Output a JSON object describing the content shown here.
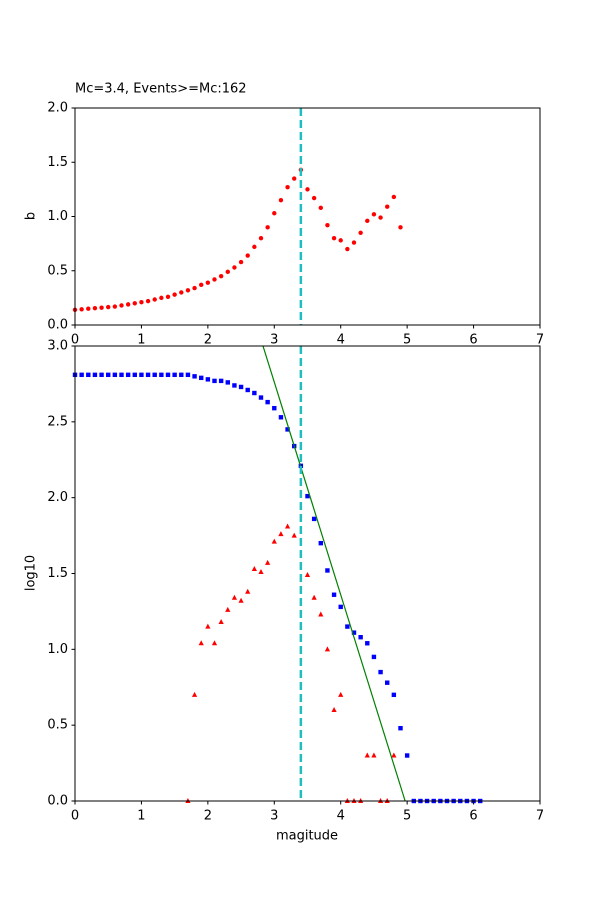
{
  "chart_data": [
    {
      "type": "scatter",
      "title": "Mc=3.4, Events>=Mc:162",
      "y_label": "b",
      "xlim": [
        0,
        7
      ],
      "ylim": [
        0,
        2
      ],
      "xticks": [
        0,
        1,
        2,
        3,
        4,
        5,
        6,
        7
      ],
      "yticks": [
        {
          "value": 0,
          "label": "0.0"
        },
        {
          "value": 0.5,
          "label": "0.5"
        },
        {
          "value": 1,
          "label": "1.0"
        },
        {
          "value": 1.5,
          "label": "1.5"
        },
        {
          "value": 2,
          "label": "2.0"
        }
      ],
      "vline": {
        "x": 3.4,
        "color": "#1fbfbf"
      },
      "series": [
        {
          "marker": "o",
          "color": "#ff0000",
          "x": [
            0.0,
            0.1,
            0.2,
            0.3,
            0.4,
            0.5,
            0.6,
            0.7,
            0.8,
            0.9,
            1.0,
            1.1,
            1.2,
            1.3,
            1.4,
            1.5,
            1.6,
            1.7,
            1.8,
            1.9,
            2.0,
            2.1,
            2.2,
            2.3,
            2.4,
            2.5,
            2.6,
            2.7,
            2.8,
            2.9,
            3.0,
            3.1,
            3.2,
            3.3,
            3.4,
            3.5,
            3.6,
            3.7,
            3.8,
            3.9,
            4.0,
            4.1,
            4.2,
            4.3,
            4.4,
            4.5,
            4.6,
            4.7,
            4.8,
            4.9
          ],
          "values": [
            0.14,
            0.145,
            0.15,
            0.155,
            0.16,
            0.165,
            0.17,
            0.18,
            0.19,
            0.2,
            0.21,
            0.22,
            0.235,
            0.25,
            0.26,
            0.28,
            0.3,
            0.32,
            0.34,
            0.37,
            0.39,
            0.42,
            0.45,
            0.49,
            0.53,
            0.58,
            0.64,
            0.72,
            0.8,
            0.9,
            1.03,
            1.15,
            1.27,
            1.35,
            1.43,
            1.25,
            1.17,
            1.08,
            0.92,
            0.8,
            0.78,
            0.7,
            0.76,
            0.85,
            0.96,
            1.02,
            0.99,
            1.09,
            1.18,
            0.9
          ]
        }
      ]
    },
    {
      "type": "scatter",
      "x_label": "magitude",
      "y_label": "log10",
      "xlim": [
        0,
        7
      ],
      "ylim": [
        0,
        3
      ],
      "xticks": [
        0,
        1,
        2,
        3,
        4,
        5,
        6,
        7
      ],
      "yticks": [
        {
          "value": 0,
          "label": "0.0"
        },
        {
          "value": 0.5,
          "label": "0.5"
        },
        {
          "value": 1,
          "label": "1.0"
        },
        {
          "value": 1.5,
          "label": "1.5"
        },
        {
          "value": 2,
          "label": "2.0"
        },
        {
          "value": 2.5,
          "label": "2.5"
        },
        {
          "value": 3,
          "label": "3.0"
        }
      ],
      "vline": {
        "x": 3.4,
        "color": "#1fbfbf"
      },
      "series": [
        {
          "marker": "s",
          "color": "#0000ff",
          "x": [
            0.0,
            0.1,
            0.2,
            0.3,
            0.4,
            0.5,
            0.6,
            0.7,
            0.8,
            0.9,
            1.0,
            1.1,
            1.2,
            1.3,
            1.4,
            1.5,
            1.6,
            1.7,
            1.8,
            1.9,
            2.0,
            2.1,
            2.2,
            2.3,
            2.4,
            2.5,
            2.6,
            2.7,
            2.8,
            2.9,
            3.0,
            3.1,
            3.2,
            3.3,
            3.4,
            3.5,
            3.6,
            3.7,
            3.8,
            3.9,
            4.0,
            4.1,
            4.2,
            4.3,
            4.4,
            4.5,
            4.6,
            4.7,
            4.8,
            4.9,
            5.0,
            5.1,
            5.2,
            5.3,
            5.4,
            5.5,
            5.6,
            5.7,
            5.8,
            5.9,
            6.0,
            6.1
          ],
          "values": [
            2.81,
            2.81,
            2.81,
            2.81,
            2.81,
            2.81,
            2.81,
            2.81,
            2.81,
            2.81,
            2.81,
            2.81,
            2.81,
            2.81,
            2.81,
            2.81,
            2.81,
            2.81,
            2.8,
            2.79,
            2.78,
            2.77,
            2.77,
            2.76,
            2.74,
            2.73,
            2.71,
            2.69,
            2.66,
            2.63,
            2.59,
            2.53,
            2.45,
            2.34,
            2.21,
            2.01,
            1.86,
            1.7,
            1.52,
            1.36,
            1.28,
            1.15,
            1.11,
            1.08,
            1.04,
            0.95,
            0.85,
            0.78,
            0.7,
            0.48,
            0.3,
            0,
            0,
            0,
            0,
            0,
            0,
            0,
            0,
            0,
            0,
            0
          ]
        },
        {
          "marker": "^",
          "color": "#ff0000",
          "x": [
            1.7,
            1.8,
            1.9,
            2.0,
            2.1,
            2.2,
            2.3,
            2.4,
            2.5,
            2.6,
            2.7,
            2.8,
            2.9,
            3.0,
            3.1,
            3.2,
            3.3,
            3.5,
            3.6,
            3.7,
            3.8,
            3.9,
            4.0,
            4.1,
            4.2,
            4.3,
            4.4,
            4.5,
            4.6,
            4.7,
            4.8
          ],
          "values": [
            0,
            0.7,
            1.04,
            1.15,
            1.04,
            1.18,
            1.26,
            1.34,
            1.32,
            1.38,
            1.53,
            1.51,
            1.57,
            1.71,
            1.76,
            1.81,
            1.75,
            1.49,
            1.34,
            1.23,
            1.0,
            0.6,
            0.7,
            0,
            0,
            0,
            0.3,
            0.3,
            0,
            0,
            0.3
          ]
        },
        {
          "marker": "line",
          "color": "#008000",
          "x": [
            2.83,
            4.97
          ],
          "values": [
            3,
            0
          ]
        }
      ]
    }
  ]
}
